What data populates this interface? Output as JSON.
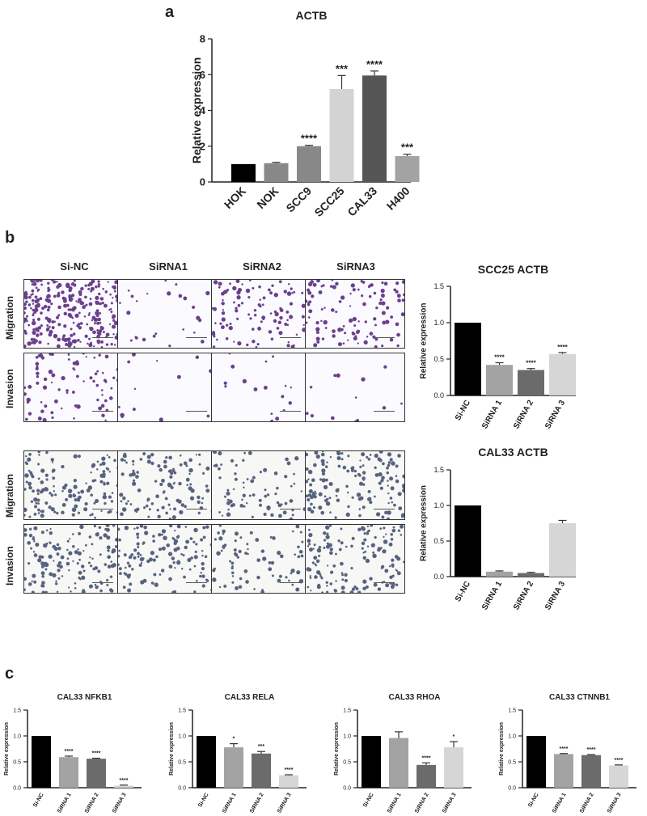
{
  "panels": {
    "a": "a",
    "b": "b",
    "c": "c"
  },
  "micrograph_grid": {
    "columns": [
      "Si-NC",
      "SiRNA1",
      "SiRNA2",
      "SiRNA3"
    ],
    "rows": [
      "Migration",
      "Invasion",
      "Migration",
      "Invasion"
    ],
    "top_stain_color": "#6a3f8c",
    "bottom_stain_color": "#56627f",
    "cell_density": [
      [
        0.95,
        0.08,
        0.35,
        0.35
      ],
      [
        0.25,
        0.04,
        0.06,
        0.04
      ],
      [
        0.45,
        0.35,
        0.25,
        0.45
      ],
      [
        0.45,
        0.4,
        0.25,
        0.45
      ]
    ]
  },
  "chart_data": [
    {
      "id": "a",
      "type": "bar",
      "title": "ACTB",
      "ylabel": "Relative expression",
      "xlabel": "",
      "categories": [
        "HOK",
        "NOK",
        "SCC9",
        "SCC25",
        "CAL33",
        "H400"
      ],
      "values": [
        1.0,
        1.05,
        2.0,
        5.2,
        5.95,
        1.45
      ],
      "errors": [
        0.0,
        0.05,
        0.05,
        0.75,
        0.25,
        0.1
      ],
      "significance": [
        "",
        "",
        "****",
        "***",
        "****",
        "***"
      ],
      "colors": [
        "#000000",
        "#888888",
        "#888888",
        "#d3d3d3",
        "#555555",
        "#a3a3a3"
      ],
      "ylim": [
        0,
        8
      ],
      "yticks": [
        0,
        2,
        4,
        6,
        8
      ]
    },
    {
      "id": "b1",
      "type": "bar",
      "title": "SCC25 ACTB",
      "ylabel": "Relative expression",
      "xlabel": "",
      "categories": [
        "Si-NC",
        "SiRNA 1",
        "SiRNA 2",
        "SiRNA 3"
      ],
      "values": [
        1.0,
        0.42,
        0.35,
        0.57
      ],
      "errors": [
        0.0,
        0.03,
        0.02,
        0.02
      ],
      "significance": [
        "",
        "****",
        "****",
        "****"
      ],
      "colors": [
        "#000000",
        "#a3a3a3",
        "#6b6b6b",
        "#d6d6d6"
      ],
      "ylim": [
        0,
        1.5
      ],
      "yticks": [
        "0.0",
        "0.5",
        "1.0",
        "1.5"
      ]
    },
    {
      "id": "b2",
      "type": "bar",
      "title": "CAL33 ACTB",
      "ylabel": "Relative expression",
      "xlabel": "",
      "categories": [
        "Si-NC",
        "SiRNA 1",
        "SiRNA 2",
        "SiRNA 3"
      ],
      "values": [
        1.0,
        0.07,
        0.05,
        0.75
      ],
      "errors": [
        0.0,
        0.01,
        0.01,
        0.04
      ],
      "significance": [
        "",
        "",
        "",
        ""
      ],
      "colors": [
        "#000000",
        "#a3a3a3",
        "#6b6b6b",
        "#d6d6d6"
      ],
      "ylim": [
        0,
        1.5
      ],
      "yticks": [
        "0.0",
        "0.5",
        "1.0",
        "1.5"
      ]
    },
    {
      "id": "c1",
      "type": "bar",
      "title": "CAL33 NFKB1",
      "ylabel": "Relative expression",
      "xlabel": "",
      "categories": [
        "Si-NC",
        "SiRNA 1",
        "SiRNA 2",
        "SiRNA 3"
      ],
      "values": [
        1.0,
        0.59,
        0.56,
        0.04
      ],
      "errors": [
        0.0,
        0.02,
        0.01,
        0.01
      ],
      "significance": [
        "",
        "****",
        "****",
        "****"
      ],
      "colors": [
        "#000000",
        "#a3a3a3",
        "#6b6b6b",
        "#d6d6d6"
      ],
      "ylim": [
        0,
        1.5
      ],
      "yticks": [
        "0.0",
        "0.5",
        "1.0",
        "1.5"
      ]
    },
    {
      "id": "c2",
      "type": "bar",
      "title": "CAL33 RELA",
      "ylabel": "Relative expression",
      "xlabel": "",
      "categories": [
        "Si-NC",
        "SiRNA 1",
        "SiRNA 2",
        "SiRNA 3"
      ],
      "values": [
        1.0,
        0.78,
        0.66,
        0.24
      ],
      "errors": [
        0.0,
        0.07,
        0.04,
        0.01
      ],
      "significance": [
        "",
        "*",
        "***",
        "****"
      ],
      "colors": [
        "#000000",
        "#a3a3a3",
        "#6b6b6b",
        "#d6d6d6"
      ],
      "ylim": [
        0,
        1.5
      ],
      "yticks": [
        "0.0",
        "0.5",
        "1.0",
        "1.5"
      ]
    },
    {
      "id": "c3",
      "type": "bar",
      "title": "CAL33 RHOA",
      "ylabel": "Relative expression",
      "xlabel": "",
      "categories": [
        "Si-NC",
        "SiRNA 1",
        "SiRNA 2",
        "SiRNA 3"
      ],
      "values": [
        1.0,
        0.96,
        0.44,
        0.78
      ],
      "errors": [
        0.0,
        0.12,
        0.04,
        0.11
      ],
      "significance": [
        "",
        "",
        "****",
        "*"
      ],
      "colors": [
        "#000000",
        "#a3a3a3",
        "#6b6b6b",
        "#d6d6d6"
      ],
      "ylim": [
        0,
        1.5
      ],
      "yticks": [
        "0.0",
        "0.5",
        "1.0",
        "1.5"
      ]
    },
    {
      "id": "c4",
      "type": "bar",
      "title": "CAL33 CTNNB1",
      "ylabel": "Relative expression",
      "xlabel": "",
      "categories": [
        "Si-NC",
        "SiRNA 1",
        "SiRNA 2",
        "SiRNA 3"
      ],
      "values": [
        1.0,
        0.65,
        0.63,
        0.43
      ],
      "errors": [
        0.0,
        0.01,
        0.01,
        0.01
      ],
      "significance": [
        "",
        "****",
        "****",
        "****"
      ],
      "colors": [
        "#000000",
        "#a3a3a3",
        "#6b6b6b",
        "#d6d6d6"
      ],
      "ylim": [
        0,
        1.5
      ],
      "yticks": [
        "0.0",
        "0.5",
        "1.0",
        "1.5"
      ]
    }
  ]
}
